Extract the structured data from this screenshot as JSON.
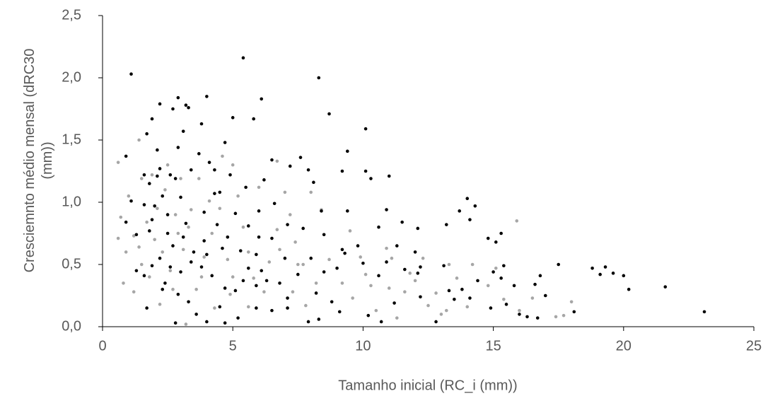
{
  "chart_data": {
    "type": "scatter",
    "x_label": "Tamanho inicial (RC_i (mm))",
    "y_label": "Cresciemnto médio mensal (dRC30 (mm))",
    "xlim": [
      0,
      25
    ],
    "xticks": [
      0,
      5,
      10,
      15,
      20,
      25
    ],
    "ylim": [
      0,
      2.5
    ],
    "yticks": [
      {
        "value": 0,
        "label": "0,0"
      },
      {
        "value": 0.5,
        "label": "0,5"
      },
      {
        "value": 1,
        "label": "1,0"
      },
      {
        "value": 1.5,
        "label": "1,5"
      },
      {
        "value": 2,
        "label": "2,0"
      },
      {
        "value": 2.5,
        "label": "2,5"
      }
    ],
    "grid": false,
    "series": [
      {
        "color": "#a6a6a6",
        "x": [
          0.6,
          0.7,
          0.6,
          0.9,
          1.2,
          1.0,
          1.4,
          1.5,
          1.9,
          2.4,
          3.0,
          2.8,
          2.0,
          1.5,
          1.8,
          2.3,
          2.6,
          2.7,
          2.2,
          3.2,
          3.6,
          3.9,
          4.2,
          4.5,
          4.6,
          5.0,
          5.2,
          5.4,
          5.6,
          5.0,
          4.9,
          5.6,
          6.2,
          6.4,
          6.7,
          6.7,
          7.0,
          7.2,
          7.4,
          7.5,
          7.3,
          7.8,
          8.2,
          8.4,
          8.7,
          9.2,
          9.6,
          9.9,
          10.3,
          10.5,
          10.9,
          11.0,
          11.3,
          11.6,
          11.8,
          12.3,
          12.5,
          12.8,
          13.0,
          13.3,
          13.6,
          14.0,
          14.2,
          14.8,
          15.1,
          15.4,
          15.9,
          16.0,
          16.5,
          17.4,
          17.7,
          18.0,
          11.1,
          10.1,
          3.1,
          3.4,
          3.7,
          4.1,
          2.5,
          1.7,
          1.2,
          6.0,
          8.0,
          9.5,
          13.2,
          12.0,
          2.1,
          3.3,
          4.8,
          5.8,
          6.8,
          7.7,
          4.3,
          3.8,
          2.9,
          1.4,
          0.8
        ],
        "values": [
          1.32,
          0.88,
          0.71,
          0.6,
          0.73,
          1.05,
          1.5,
          1.19,
          1.22,
          1.1,
          1.19,
          0.9,
          0.7,
          0.5,
          0.4,
          0.6,
          0.45,
          0.3,
          0.18,
          0.02,
          0.3,
          0.56,
          0.75,
          0.95,
          1.37,
          1.3,
          1.05,
          0.8,
          0.6,
          0.4,
          0.26,
          0.16,
          0.28,
          0.52,
          0.78,
          1.33,
          1.08,
          0.9,
          0.68,
          0.5,
          0.28,
          0.17,
          0.35,
          0.94,
          0.54,
          0.35,
          0.23,
          0.56,
          0.33,
          0.13,
          0.63,
          0.31,
          0.07,
          0.28,
          0.43,
          0.55,
          0.17,
          0.27,
          0.1,
          0.5,
          0.39,
          0.16,
          0.5,
          0.33,
          0.47,
          0.22,
          0.85,
          0.13,
          0.23,
          0.08,
          0.09,
          0.2,
          0.55,
          0.42,
          0.62,
          0.94,
          1.19,
          1.01,
          1.3,
          0.84,
          0.28,
          1.12,
          1.08,
          0.77,
          0.13,
          0.37,
          0.95,
          0.8,
          0.54,
          0.39,
          0.62,
          0.5,
          0.15,
          0.4,
          0.75,
          0.64,
          0.35
        ]
      },
      {
        "color": "#000000",
        "x": [
          1.1,
          5.4,
          8.3,
          10.1,
          8.7,
          2.9,
          4.0,
          6.1,
          2.2,
          3.2,
          3.3,
          2.7,
          1.9,
          5.0,
          5.8,
          1.7,
          3.1,
          3.8,
          4.7,
          9.4,
          7.6,
          3.7,
          2.9,
          2.1,
          0.9,
          11.0,
          10.1,
          9.2,
          7.2,
          7.9,
          10.3,
          6.5,
          6.2,
          8.1,
          4.1,
          4.3,
          3.4,
          2.2,
          1.6,
          1.8,
          2.6,
          2.8,
          4.9,
          5.5,
          14.0,
          14.3,
          13.7,
          14.1,
          10.9,
          8.4,
          9.4,
          6.0,
          5.1,
          4.4,
          3.2,
          2.5,
          1.9,
          1.1,
          1.6,
          13.2,
          15.3,
          15.1,
          14.8,
          12.1,
          11.5,
          11.3,
          10.6,
          9.2,
          9.8,
          8.5,
          7.7,
          7.1,
          6.5,
          5.9,
          5.3,
          4.6,
          3.9,
          3.1,
          2.5,
          1.8,
          1.3,
          0.9,
          17.5,
          18.8,
          19.3,
          19.1,
          19.6,
          20.0,
          20.2,
          21.6,
          23.1,
          16.8,
          16.6,
          15.8,
          15.4,
          15.3,
          15.0,
          14.4,
          13.8,
          13.3,
          13.1,
          12.2,
          12.1,
          11.6,
          10.9,
          10.6,
          10.0,
          9.3,
          9.0,
          8.5,
          8.2,
          8.3,
          7.9,
          7.5,
          7.1,
          6.8,
          6.3,
          5.9,
          5.4,
          5.1,
          4.7,
          4.2,
          3.8,
          3.4,
          3.0,
          2.6,
          2.2,
          1.9,
          1.6,
          1.3,
          1.7,
          2.3,
          2.8,
          3.6,
          4.0,
          4.7,
          5.2,
          5.9,
          6.5,
          7.1,
          9.1,
          10.2,
          10.7,
          12.8,
          13.5,
          14.1,
          14.9,
          15.5,
          16.0,
          16.3,
          16.7,
          17.0,
          18.1,
          11.2,
          12.2,
          8.8,
          4.5,
          3.3,
          2.9,
          2.4,
          5.6,
          6.1,
          7.0,
          6.6,
          4.3,
          3.0,
          2.3,
          2.0,
          2.7,
          3.5,
          4.0,
          4.8,
          5.6,
          6.0,
          3.9,
          4.5,
          12.0,
          8.0,
          2.1
        ],
        "values": [
          2.03,
          2.16,
          2.0,
          1.59,
          1.71,
          1.84,
          1.85,
          1.83,
          1.79,
          1.78,
          1.76,
          1.75,
          1.67,
          1.68,
          1.67,
          1.55,
          1.57,
          1.63,
          1.48,
          1.41,
          1.36,
          1.39,
          1.44,
          1.42,
          1.37,
          1.21,
          1.25,
          1.25,
          1.29,
          1.26,
          1.19,
          1.34,
          1.18,
          1.16,
          1.32,
          1.26,
          1.26,
          1.27,
          1.22,
          1.15,
          1.22,
          1.19,
          1.22,
          1.12,
          1.03,
          0.97,
          0.93,
          0.86,
          0.94,
          0.93,
          0.93,
          0.93,
          0.91,
          0.82,
          0.83,
          0.9,
          0.86,
          1.01,
          0.98,
          0.82,
          0.75,
          0.68,
          0.71,
          0.79,
          0.84,
          0.65,
          0.8,
          0.62,
          0.65,
          0.74,
          0.79,
          0.82,
          0.71,
          0.58,
          0.61,
          0.63,
          0.69,
          0.72,
          0.75,
          0.77,
          0.74,
          0.84,
          0.5,
          0.47,
          0.48,
          0.42,
          0.43,
          0.41,
          0.3,
          0.32,
          0.12,
          0.41,
          0.34,
          0.33,
          0.49,
          0.39,
          0.44,
          0.37,
          0.3,
          0.29,
          0.49,
          0.48,
          0.43,
          0.46,
          0.52,
          0.41,
          0.51,
          0.59,
          0.47,
          0.44,
          0.27,
          0.06,
          0.04,
          0.42,
          0.23,
          0.35,
          0.37,
          0.33,
          0.37,
          0.29,
          0.31,
          0.41,
          0.48,
          0.52,
          0.44,
          0.48,
          0.55,
          0.49,
          0.41,
          0.45,
          0.15,
          0.3,
          0.03,
          0.1,
          0.04,
          0.03,
          0.07,
          0.15,
          0.13,
          0.15,
          0.12,
          0.09,
          0.04,
          0.04,
          0.22,
          0.23,
          0.15,
          0.18,
          0.1,
          0.08,
          0.07,
          0.25,
          0.12,
          0.19,
          0.24,
          0.2,
          0.16,
          0.2,
          0.26,
          0.35,
          0.47,
          0.45,
          0.55,
          0.99,
          1.07,
          1.04,
          1.05,
          0.97,
          0.65,
          0.6,
          0.58,
          0.72,
          0.81,
          0.72,
          0.92,
          1.08,
          0.6,
          0.55,
          1.21
        ]
      }
    ]
  }
}
